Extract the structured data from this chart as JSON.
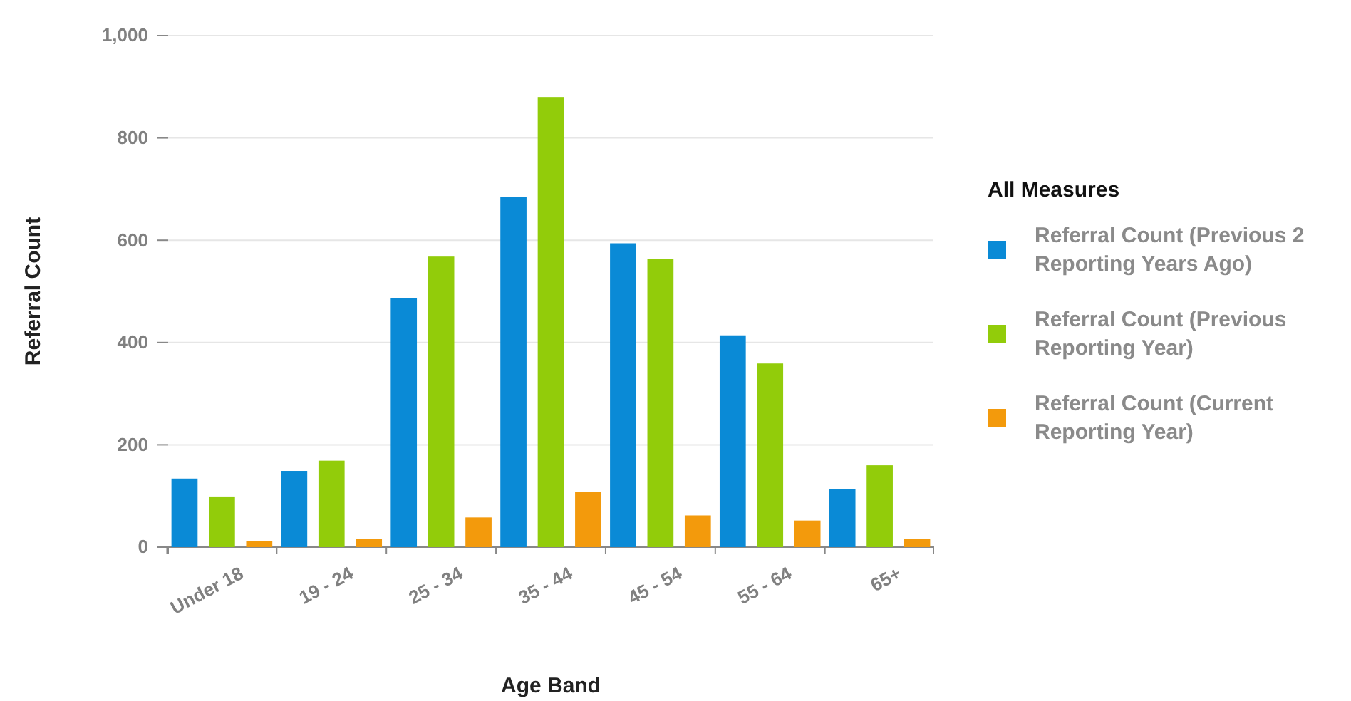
{
  "chart_data": {
    "type": "bar",
    "xlabel": "Age Band",
    "ylabel": "Referral Count",
    "legend_title": "All Measures",
    "legend": "right",
    "grid": "y",
    "categories": [
      "Under 18",
      "19 - 24",
      "25 - 34",
      "35 - 44",
      "45 - 54",
      "55 - 64",
      "65+"
    ],
    "ylim": [
      0,
      1000
    ],
    "yticks": [
      0,
      200,
      400,
      600,
      800,
      {
        "value": 1000,
        "label": "1,000"
      }
    ],
    "series": [
      {
        "name": "Referral Count (Previous 2 Reporting Years Ago)",
        "color": "#0a8ad6",
        "values": [
          134,
          149,
          487,
          685,
          594,
          414,
          114
        ]
      },
      {
        "name": "Referral Count (Previous Reporting Year)",
        "color": "#92cc0a",
        "values": [
          99,
          169,
          568,
          880,
          563,
          359,
          160
        ]
      },
      {
        "name": "Referral Count (Current Reporting Year)",
        "color": "#f39a0c",
        "values": [
          12,
          16,
          58,
          108,
          62,
          52,
          16
        ]
      }
    ]
  }
}
